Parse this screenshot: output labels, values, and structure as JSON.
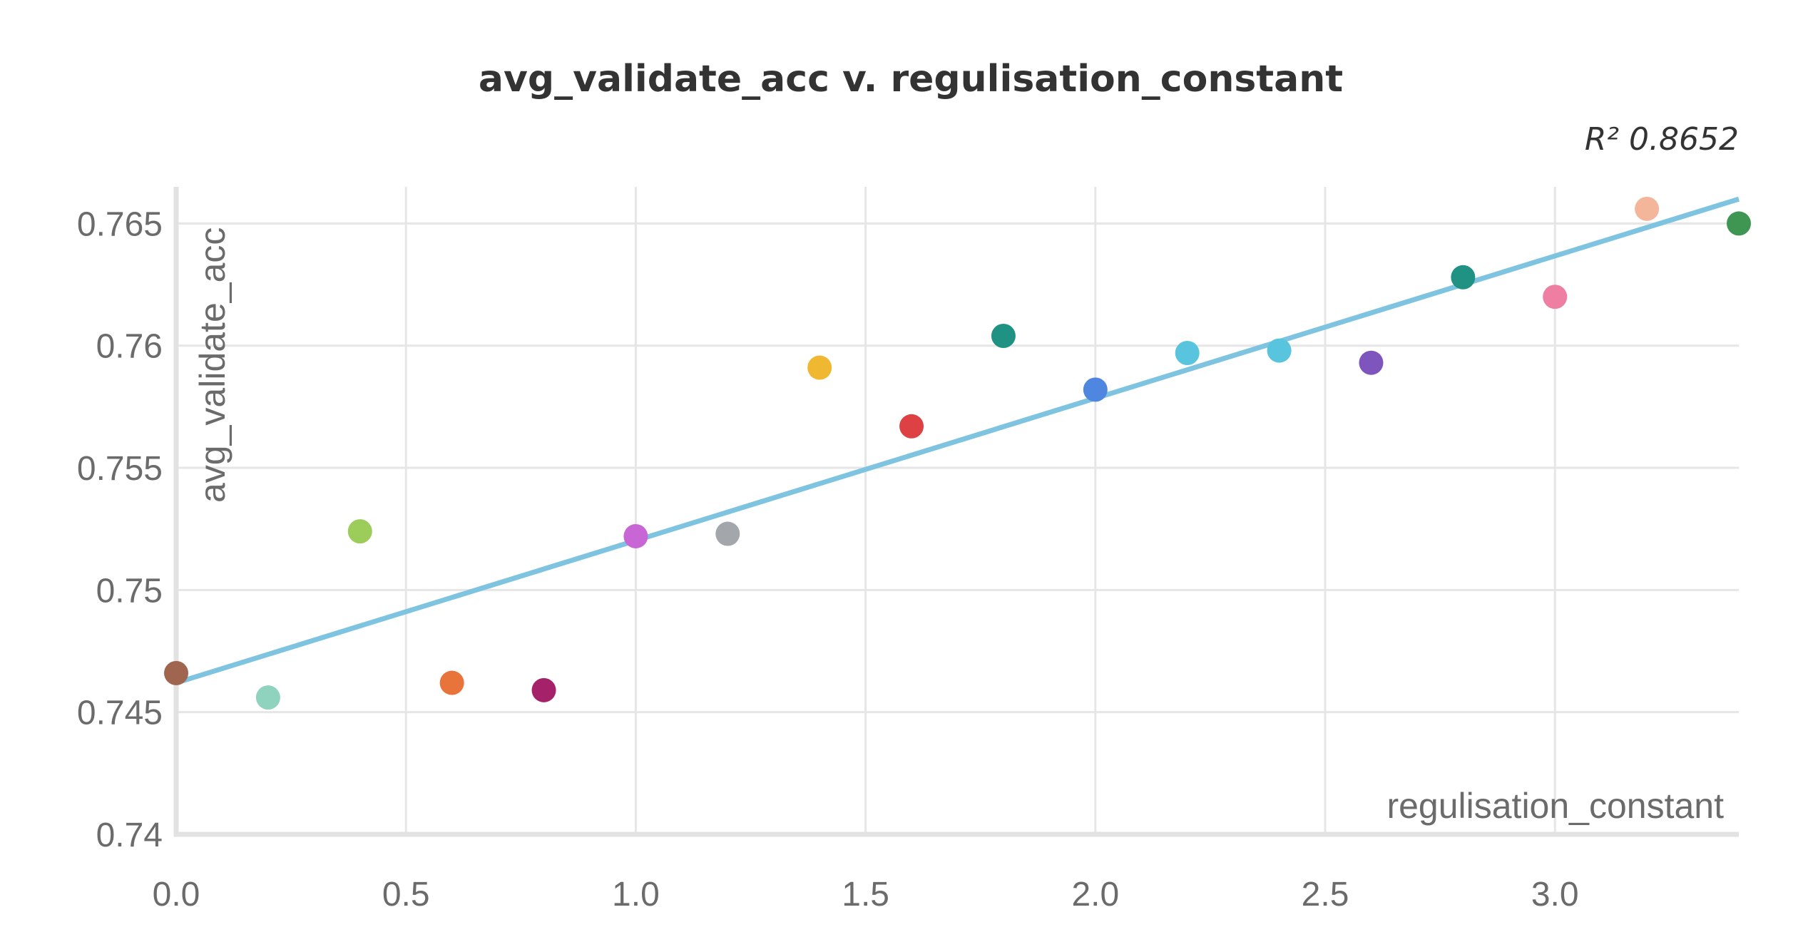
{
  "chart_data": {
    "type": "scatter",
    "title": "avg_validate_acc v. regulisation_constant",
    "xlabel": "regulisation_constant",
    "ylabel": "avg_validate_acc",
    "xlim": [
      0,
      3.4
    ],
    "ylim": [
      0.74,
      0.7665
    ],
    "x_ticks": [
      0,
      0.5,
      1,
      1.5,
      2,
      2.5,
      3
    ],
    "x_tick_labels": [
      "0.0",
      "0.5",
      "1.0",
      "1.5",
      "2.0",
      "2.5",
      "3.0"
    ],
    "y_ticks": [
      0.74,
      0.745,
      0.75,
      0.755,
      0.76,
      0.765
    ],
    "y_tick_labels": [
      "0.74",
      "0.745",
      "0.75",
      "0.755",
      "0.76",
      "0.765"
    ],
    "grid": true,
    "r_squared_label": "R² 0.8652",
    "trendline": {
      "x": [
        0,
        3.4
      ],
      "y": [
        0.7462,
        0.766
      ],
      "color": "#7ec4e0"
    },
    "points": [
      {
        "x": 0.0,
        "y": 0.7466,
        "color": "#a0654e"
      },
      {
        "x": 0.2,
        "y": 0.7456,
        "color": "#8fd3bf"
      },
      {
        "x": 0.4,
        "y": 0.7524,
        "color": "#9ccc5a"
      },
      {
        "x": 0.6,
        "y": 0.7462,
        "color": "#e8743b"
      },
      {
        "x": 0.8,
        "y": 0.7459,
        "color": "#a5216a"
      },
      {
        "x": 1.0,
        "y": 0.7522,
        "color": "#c766d4"
      },
      {
        "x": 1.2,
        "y": 0.7523,
        "color": "#a3a7ab"
      },
      {
        "x": 1.4,
        "y": 0.7591,
        "color": "#f0b731"
      },
      {
        "x": 1.6,
        "y": 0.7567,
        "color": "#de4144"
      },
      {
        "x": 1.8,
        "y": 0.7604,
        "color": "#1f9283"
      },
      {
        "x": 2.0,
        "y": 0.7582,
        "color": "#4e86e0"
      },
      {
        "x": 2.2,
        "y": 0.7597,
        "color": "#58c4dd"
      },
      {
        "x": 2.4,
        "y": 0.7598,
        "color": "#58c4dd"
      },
      {
        "x": 2.6,
        "y": 0.7593,
        "color": "#7e55bd"
      },
      {
        "x": 2.8,
        "y": 0.7628,
        "color": "#1f9283"
      },
      {
        "x": 3.0,
        "y": 0.762,
        "color": "#ee7fa2"
      },
      {
        "x": 3.2,
        "y": 0.7656,
        "color": "#f4b69a"
      },
      {
        "x": 3.4,
        "y": 0.765,
        "color": "#3f9652"
      }
    ]
  }
}
